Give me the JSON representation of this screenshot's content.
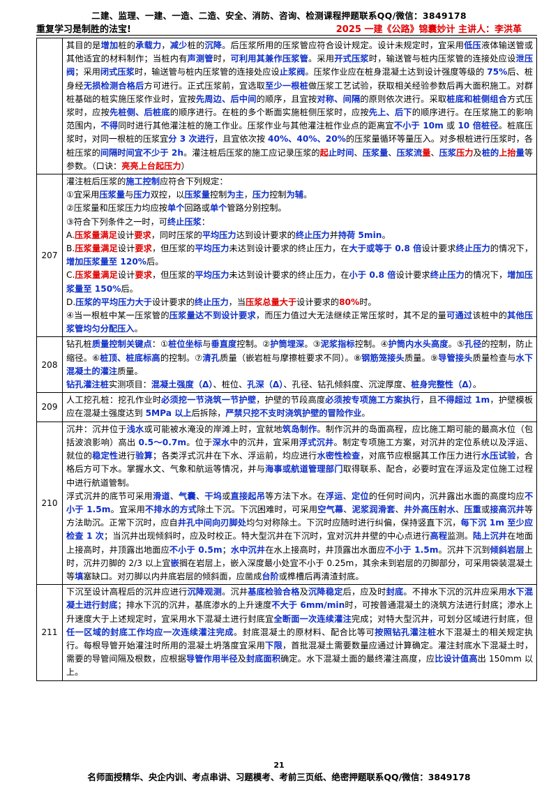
{
  "header": {
    "top_line": "二建、监理、一建、一造、二造、安全、消防、咨询、检测课程押题联系QQ/微信：3849178",
    "left": "重复学习是制胜的法宝!",
    "right": "2025 一建《公路》锦囊妙计 主讲人：李洪革"
  },
  "footer": {
    "page": "21",
    "line": "名师面授精华、央企内训、考点串讲、习题模考、考前三页纸、绝密押题联系QQ/微信：3849178"
  },
  "rows": [
    {
      "num": "",
      "segments": [
        [
          "t",
          "其目的是"
        ],
        [
          "b",
          "增加"
        ],
        [
          "t",
          "桩的"
        ],
        [
          "b",
          "承载力"
        ],
        [
          "t",
          "，"
        ],
        [
          "b",
          "减少"
        ],
        [
          "t",
          "桩的"
        ],
        [
          "b",
          "沉降"
        ],
        [
          "t",
          "。后压浆所用的压浆管应符合设计规定。设计未规定时，宜采用"
        ],
        [
          "b",
          "低压"
        ],
        [
          "t",
          "液体输送管或其他适宜的材料制作；当桩内有"
        ],
        [
          "b",
          "声测管"
        ],
        [
          "t",
          "时，"
        ],
        [
          "b",
          "可利用其兼作压浆管"
        ],
        [
          "t",
          "。采用"
        ],
        [
          "b",
          "开式压浆"
        ],
        [
          "t",
          "时，输送管与桩内压浆管的连接处应设"
        ],
        [
          "b",
          "泄压阀"
        ],
        [
          "t",
          "；采用"
        ],
        [
          "b",
          "闭式压浆"
        ],
        [
          "t",
          "时，输送管与桩内压浆管的连接处应设"
        ],
        [
          "b",
          "止浆阀"
        ],
        [
          "t",
          "。压浆作业应在桩身混凝土达到设计强度等级的 "
        ],
        [
          "b",
          "75%"
        ],
        [
          "t",
          "后、桩身经"
        ],
        [
          "b",
          "无损检测合格后"
        ],
        [
          "t",
          "方可进行。正式压浆前，宜选取"
        ],
        [
          "b",
          "至少一根桩"
        ],
        [
          "t",
          "做压浆工艺试验，获取相关经验参数后再大面积施工。对群桩基础的桩实施压浆作业时，宜按"
        ],
        [
          "b",
          "先周边、后中间"
        ],
        [
          "t",
          "的顺序，且宜按"
        ],
        [
          "b",
          "对称、间隔"
        ],
        [
          "t",
          "的原则依次进行。采取"
        ],
        [
          "b",
          "桩底和桩侧组合"
        ],
        [
          "t",
          "方式压浆时，应按"
        ],
        [
          "b",
          "先桩侧、后桩底"
        ],
        [
          "t",
          "的顺序进行。在桩的多个断面实施桩侧压浆时，应按"
        ],
        [
          "b",
          "先上、后下"
        ],
        [
          "t",
          "的顺序进行。在压浆施工的影响范围内，"
        ],
        [
          "b",
          "不得"
        ],
        [
          "t",
          "同时进行其他灌注桩的施工作业。压浆作业与其他灌注桩作业点的距离宜"
        ],
        [
          "b",
          "不小于 10m"
        ],
        [
          "t",
          " 或 "
        ],
        [
          "b",
          "10 倍桩径"
        ],
        [
          "t",
          "。桩底压浆时，对同一根桩的压浆宜"
        ],
        [
          "b",
          "分 3 次进行"
        ],
        [
          "t",
          "，且宜依次按 "
        ],
        [
          "b",
          "40%、40%、20%"
        ],
        [
          "t",
          "的压浆量循环等量压入。对多根桩进行压浆时，各桩压浆的"
        ],
        [
          "b",
          "间隔时间宜不少于 2h"
        ],
        [
          "t",
          "。灌注桩后压浆的施工应记录压浆的"
        ],
        [
          "r",
          "起"
        ],
        [
          "b",
          "止时间"
        ],
        [
          "t",
          "、"
        ],
        [
          "b",
          "压浆量"
        ],
        [
          "t",
          "、"
        ],
        [
          "b",
          "压浆流"
        ],
        [
          "r",
          "量"
        ],
        [
          "t",
          "、"
        ],
        [
          "b",
          "压浆"
        ],
        [
          "r",
          "压力"
        ],
        [
          "t",
          "及"
        ],
        [
          "b",
          "桩的"
        ],
        [
          "r",
          "上抬"
        ],
        [
          "b",
          "量"
        ],
        [
          "t",
          "等参数。（口诀："
        ],
        [
          "r",
          "亮亮上台起压力"
        ],
        [
          "t",
          "）"
        ]
      ]
    },
    {
      "num": "207",
      "segments": [
        [
          "t",
          "灌注桩后压浆的"
        ],
        [
          "b",
          "施工控制"
        ],
        [
          "t",
          "应符合下列规定：\n①宜采用"
        ],
        [
          "b",
          "压浆量"
        ],
        [
          "t",
          "与"
        ],
        [
          "b",
          "压力"
        ],
        [
          "t",
          "双控，以"
        ],
        [
          "b",
          "压浆量"
        ],
        [
          "t",
          "控制"
        ],
        [
          "b",
          "为主"
        ],
        [
          "t",
          "，"
        ],
        [
          "b",
          "压力"
        ],
        [
          "t",
          "控制"
        ],
        [
          "b",
          "为辅"
        ],
        [
          "t",
          "。\n②压浆量和压浆压力均应按"
        ],
        [
          "b",
          "单个"
        ],
        [
          "t",
          "回路或"
        ],
        [
          "b",
          "单个"
        ],
        [
          "t",
          "管路分别控制。\n③符合下列条件之一时，可"
        ],
        [
          "b",
          "终止压浆"
        ],
        [
          "t",
          "：\nA."
        ],
        [
          "r",
          "压浆量满足"
        ],
        [
          "t",
          "设计"
        ],
        [
          "r",
          "要求"
        ],
        [
          "t",
          "，同时压浆的"
        ],
        [
          "b",
          "平均压力"
        ],
        [
          "t",
          "达到设计要求的"
        ],
        [
          "b",
          "终止压力"
        ],
        [
          "t",
          "并"
        ],
        [
          "b",
          "持荷 5min"
        ],
        [
          "t",
          "。\nB."
        ],
        [
          "r",
          "压浆量满足"
        ],
        [
          "t",
          "设计"
        ],
        [
          "r",
          "要求"
        ],
        [
          "t",
          "，但压浆的"
        ],
        [
          "b",
          "平均压力"
        ],
        [
          "t",
          "未达到设计要求的终止压力，在"
        ],
        [
          "b",
          "大于或等于 0.8 倍"
        ],
        [
          "t",
          "设计要求"
        ],
        [
          "b",
          "终止压力"
        ],
        [
          "t",
          "的情况下，"
        ],
        [
          "b",
          "增加压浆量至 120%"
        ],
        [
          "t",
          "后。\nC."
        ],
        [
          "r",
          "压浆量满足"
        ],
        [
          "t",
          "设计"
        ],
        [
          "r",
          "要求"
        ],
        [
          "t",
          "，但压浆的"
        ],
        [
          "b",
          "平均压力"
        ],
        [
          "t",
          "未达到设计要求的终止压力，在"
        ],
        [
          "b",
          "小于 0.8 倍"
        ],
        [
          "t",
          "设计要求"
        ],
        [
          "b",
          "终止压力"
        ],
        [
          "t",
          "的情况下，"
        ],
        [
          "b",
          "增加压浆量至 150%"
        ],
        [
          "t",
          "后。\nD."
        ],
        [
          "b",
          "压浆的平均压力大于"
        ],
        [
          "t",
          "设计要求的"
        ],
        [
          "b",
          "终止压力"
        ],
        [
          "t",
          "，当"
        ],
        [
          "r",
          "压浆总量大于"
        ],
        [
          "t",
          "设计要求的"
        ],
        [
          "r",
          "80%"
        ],
        [
          "t",
          "时。\n④当一根桩中某一压浆管的"
        ],
        [
          "b",
          "压浆量达不到设计要求"
        ],
        [
          "t",
          "，而压力值过大无法继续正常压浆时，其不足的量"
        ],
        [
          "b",
          "可通过"
        ],
        [
          "t",
          "该桩中的"
        ],
        [
          "b",
          "其他压浆管均匀分配压入"
        ],
        [
          "t",
          "。"
        ]
      ]
    },
    {
      "num": "208",
      "segments": [
        [
          "t",
          "钻孔桩"
        ],
        [
          "b",
          "质量控制关键点"
        ],
        [
          "t",
          "：①"
        ],
        [
          "b",
          "桩位坐标"
        ],
        [
          "t",
          "与"
        ],
        [
          "b",
          "垂直度"
        ],
        [
          "t",
          "控制。②"
        ],
        [
          "b",
          "护筒埋深"
        ],
        [
          "t",
          "。③"
        ],
        [
          "b",
          "泥浆指标"
        ],
        [
          "t",
          "控制。④"
        ],
        [
          "b",
          "护筒内水头高度"
        ],
        [
          "t",
          "。⑤"
        ],
        [
          "b",
          "孔径"
        ],
        [
          "t",
          "的控制，防止缩径。⑥"
        ],
        [
          "b",
          "桩顶、桩底标高"
        ],
        [
          "t",
          "的控制。⑦"
        ],
        [
          "b",
          "清孔"
        ],
        [
          "t",
          "质量（嵌岩桩与摩擦桩要求不同）。⑧"
        ],
        [
          "b",
          "钢筋笼接头"
        ],
        [
          "t",
          "质量。⑨"
        ],
        [
          "b",
          "导管接头"
        ],
        [
          "t",
          "质量检查与"
        ],
        [
          "b",
          "水下混凝土的灌注"
        ],
        [
          "t",
          "质量。\n"
        ],
        [
          "b",
          "钻孔灌注桩"
        ],
        [
          "t",
          "实测项目："
        ],
        [
          "b",
          "混凝土强度（Δ）"
        ],
        [
          "t",
          "、桩位、"
        ],
        [
          "b",
          "孔深（Δ）"
        ],
        [
          "t",
          "、孔径、钻孔倾斜度、沉淀厚度、"
        ],
        [
          "b",
          "桩身完整性（Δ）"
        ],
        [
          "t",
          "。"
        ]
      ]
    },
    {
      "num": "209",
      "segments": [
        [
          "t",
          "人工挖孔桩：挖孔作业时"
        ],
        [
          "b",
          "必须挖一节浇筑一节护壁"
        ],
        [
          "t",
          "，护壁的节段高度"
        ],
        [
          "b",
          "必须按专项施工方案执行"
        ],
        [
          "t",
          "，且"
        ],
        [
          "b",
          "不得超过 1m"
        ],
        [
          "t",
          "，护壁模板应在混凝土强度达到 "
        ],
        [
          "b",
          "5MPa 以上"
        ],
        [
          "t",
          "后拆除，"
        ],
        [
          "b",
          "严禁只挖不支时浇筑护壁的冒险作业"
        ],
        [
          "t",
          "。"
        ]
      ]
    },
    {
      "num": "210",
      "segments": [
        [
          "t",
          "沉井：沉井位于"
        ],
        [
          "b",
          "浅水"
        ],
        [
          "t",
          "或可能被水淹没的岸滩上时，宜就地"
        ],
        [
          "b",
          "筑岛制作"
        ],
        [
          "t",
          "。制作沉井的岛面高程，应比施工期可能的最高水位（包括波浪影响）高出 "
        ],
        [
          "b",
          "0.5～0.7m"
        ],
        [
          "t",
          "。位于"
        ],
        [
          "b",
          "深水"
        ],
        [
          "t",
          "中的沉井，宜采用"
        ],
        [
          "b",
          "浮式沉井"
        ],
        [
          "t",
          "。制定专项施工方案，对沉井的定位系统以及浮运、就位的"
        ],
        [
          "b",
          "稳定性"
        ],
        [
          "t",
          "进行"
        ],
        [
          "b",
          "验算"
        ],
        [
          "t",
          "；各类浮式沉井在下水、浮运前，均应进行"
        ],
        [
          "b",
          "水密性检查"
        ],
        [
          "t",
          "，对底节应根据其工作压力进行"
        ],
        [
          "b",
          "水压试验"
        ],
        [
          "t",
          "，合格后方可下水。掌握水文、气象和航运等情况，并与"
        ],
        [
          "b",
          "海事或航道管理部门"
        ],
        [
          "t",
          "取得联系、配合，必要时宜在浮运及定位施工过程中进行航道管制。\n浮式沉井的底节可采用"
        ],
        [
          "b",
          "滑道"
        ],
        [
          "t",
          "、"
        ],
        [
          "b",
          "气囊"
        ],
        [
          "t",
          "、"
        ],
        [
          "b",
          "干坞"
        ],
        [
          "t",
          "或"
        ],
        [
          "b",
          "直接起吊"
        ],
        [
          "t",
          "等方法下水。在"
        ],
        [
          "b",
          "浮运"
        ],
        [
          "t",
          "、"
        ],
        [
          "b",
          "定位"
        ],
        [
          "t",
          "的任何时间内，沉井露出水面的高度均应"
        ],
        [
          "b",
          "不小于 1.5m"
        ],
        [
          "t",
          "。宜采用"
        ],
        [
          "b",
          "不排水的方式"
        ],
        [
          "t",
          "除土下沉。下沉困难时，可采用"
        ],
        [
          "b",
          "空气幕"
        ],
        [
          "t",
          "、"
        ],
        [
          "b",
          "泥浆润滑套"
        ],
        [
          "t",
          "、"
        ],
        [
          "b",
          "井外高压射水"
        ],
        [
          "t",
          "、"
        ],
        [
          "b",
          "压重"
        ],
        [
          "t",
          "或"
        ],
        [
          "b",
          "接高沉井"
        ],
        [
          "t",
          "等方法助沉。正常下沉时，应自"
        ],
        [
          "b",
          "井孔中间向刃脚处"
        ],
        [
          "t",
          "均匀对称除土。下沉时应随时进行纠偏，保持竖直下沉，"
        ],
        [
          "b",
          "每下沉 1m 至少应检查 1 次"
        ],
        [
          "t",
          "；当沉井出现倾斜时，应及时校正。特大型沉井在下沉时，宜对沉井井壁的中心点进行"
        ],
        [
          "b",
          "高程"
        ],
        [
          "t",
          "监测。"
        ],
        [
          "b",
          "陆上沉井"
        ],
        [
          "t",
          "在地面上接高时，井顶露出地面应"
        ],
        [
          "b",
          "不小于 0.5m"
        ],
        [
          "t",
          "；"
        ],
        [
          "b",
          "水中沉井"
        ],
        [
          "t",
          "在水上接高时，井顶露出水面应"
        ],
        [
          "b",
          "不小于 1.5m"
        ],
        [
          "t",
          "。沉井下沉到"
        ],
        [
          "b",
          "倾斜岩层"
        ],
        [
          "t",
          "上时，沉井刃脚的 2/3 以上宜"
        ],
        [
          "b",
          "嵌"
        ],
        [
          "t",
          "搁在岩层上，嵌入深度最小处宜不小于 0.25m，其余未到岩层的刃脚部分，可采用袋装混凝土等"
        ],
        [
          "b",
          "填"
        ],
        [
          "t",
          "塞缺口。对刃脚以内井底岩层的倾斜面，应凿成"
        ],
        [
          "b",
          "台阶"
        ],
        [
          "t",
          "或榫槽后再清渣封底。"
        ]
      ]
    },
    {
      "num": "211",
      "segments": [
        [
          "t",
          "下沉至设计高程后的沉井应进行"
        ],
        [
          "b",
          "沉降观测"
        ],
        [
          "t",
          "。沉井"
        ],
        [
          "b",
          "基底检验合格"
        ],
        [
          "t",
          "及"
        ],
        [
          "b",
          "沉降稳定"
        ],
        [
          "t",
          "后，应及时"
        ],
        [
          "b",
          "封底"
        ],
        [
          "t",
          "。不排水下沉的沉井应采用"
        ],
        [
          "b",
          "水下混凝土进行封底"
        ],
        [
          "t",
          "；排水下沉的沉井，基底渗水的上升速度"
        ],
        [
          "b",
          "不大于 6mm/min"
        ],
        [
          "t",
          "时，可按普通混凝土的浇筑方法进行封底；渗水上升速度大于上述规定时，宜采用水下混凝土进行封底宜"
        ],
        [
          "b",
          "全断面一次连续灌注"
        ],
        [
          "t",
          "完成；对特大型沉井，可划分区域进行封底，但"
        ],
        [
          "b",
          "任一区域的封底工作均应一次连续灌注完成"
        ],
        [
          "t",
          "。封底混凝土的原材料、配合比等可"
        ],
        [
          "b",
          "按照钻孔灌注桩"
        ],
        [
          "t",
          "水下混凝土的相关规定执行。每根导管开始灌注时所用的混凝土坍落度宜采用"
        ],
        [
          "b",
          "下限"
        ],
        [
          "t",
          "，首批混凝土需要数量应通过计算确定。灌注封底水下混凝土时，需要的导管间隔及根数，应根据"
        ],
        [
          "b",
          "导管作用半径"
        ],
        [
          "t",
          "及"
        ],
        [
          "b",
          "封底面积"
        ],
        [
          "t",
          "确定。水下混凝土面的最终灌注高度，应"
        ],
        [
          "b",
          "比设计值高"
        ],
        [
          "t",
          "出 150mm 以上。"
        ]
      ]
    }
  ]
}
